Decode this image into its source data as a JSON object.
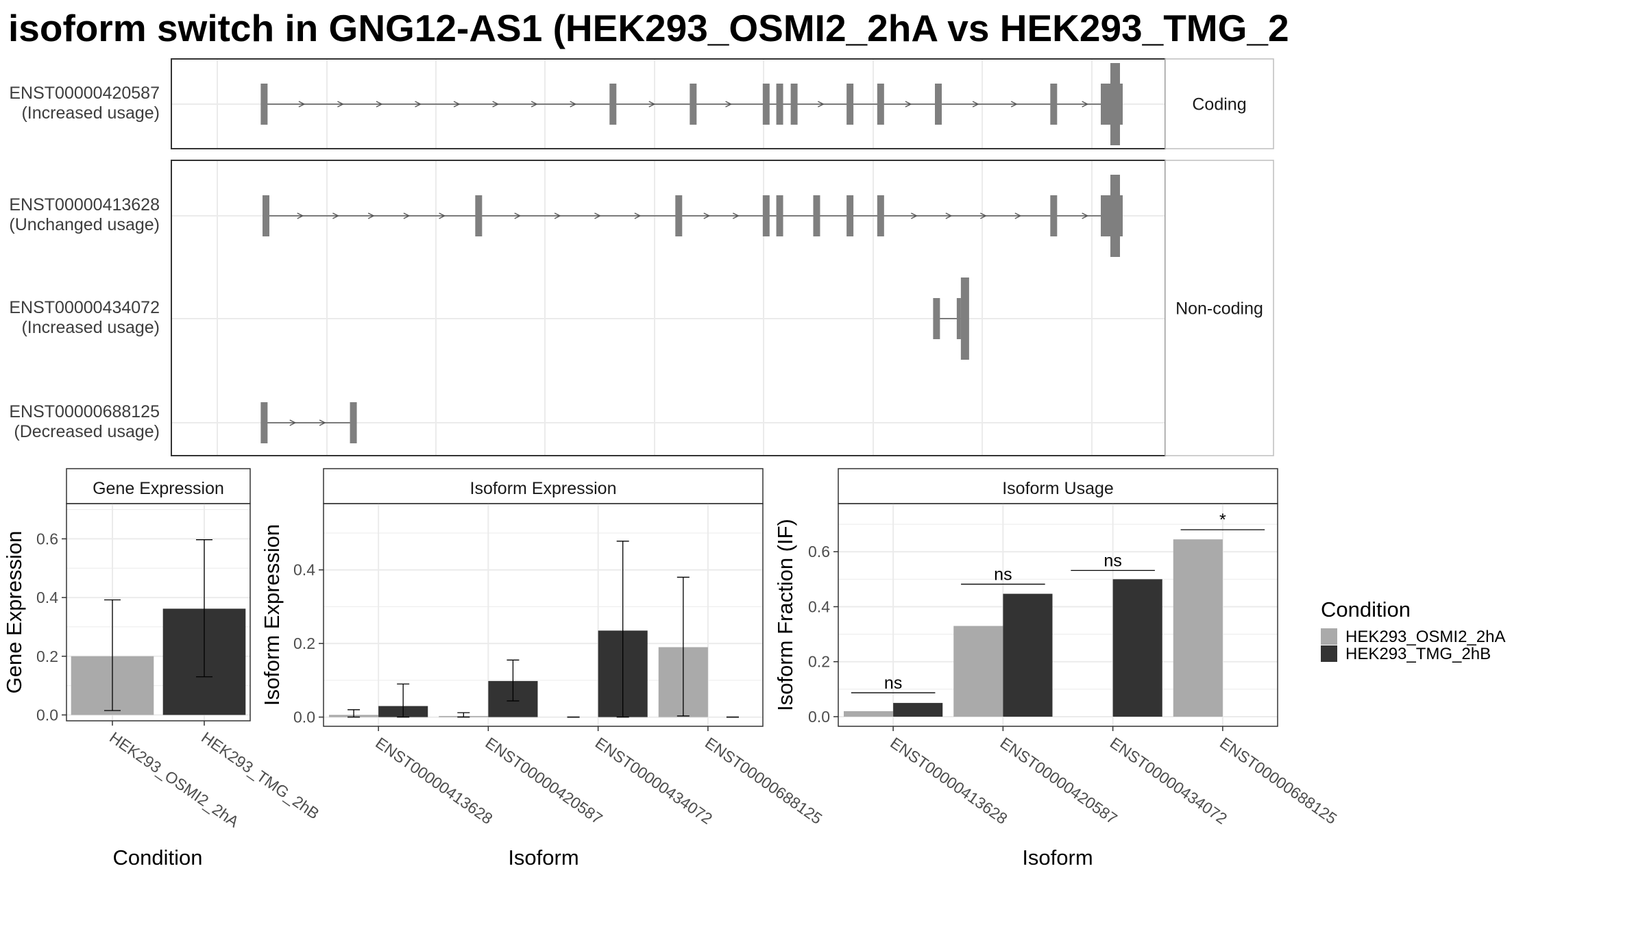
{
  "title": "isoform switch in GNG12-AS1 (HEK293_OSMI2_2hA vs HEK293_TMG_2",
  "colors": {
    "HEK293_OSMI2_2hA": "#aaaaaa",
    "HEK293_TMG_2hB": "#333333",
    "exon": "#7f7f7f",
    "grid": "#ebebeb",
    "panel_border": "#333333"
  },
  "transcript_panel": {
    "groups": [
      {
        "label": "Coding",
        "isoforms": [
          0
        ]
      },
      {
        "label": "Non-coding",
        "isoforms": [
          1,
          2,
          3
        ]
      }
    ],
    "isoforms": [
      {
        "id": "ENST00000420587",
        "usage": "(Increased usage)",
        "exons": [
          0.052,
          0.439,
          0.528,
          0.609,
          0.624,
          0.64,
          0.702,
          0.736,
          0.8,
          0.928,
          1.0
        ],
        "utr_tail": true
      },
      {
        "id": "ENST00000413628",
        "usage": "(Unchanged usage)",
        "exons": [
          0.054,
          0.29,
          0.512,
          0.609,
          0.624,
          0.665,
          0.702,
          0.736,
          0.928,
          1.0
        ],
        "utr_tail": true
      },
      {
        "id": "ENST00000434072",
        "usage": "(Increased usage)",
        "exons": [
          0.798,
          0.825
        ],
        "utr_tail": false
      },
      {
        "id": "ENST00000688125",
        "usage": "(Decreased usage)",
        "exons": [
          0.052,
          0.151
        ],
        "utr_tail": false
      }
    ]
  },
  "chart_data": [
    {
      "type": "bar",
      "title": "Gene Expression",
      "xlabel": "Condition",
      "ylabel": "Gene Expression",
      "ylim": [
        -0.02,
        0.72
      ],
      "yticks": [
        0.0,
        0.2,
        0.4,
        0.6
      ],
      "categories": [
        "HEK293_OSMI2_2hA",
        "HEK293_TMG_2hB"
      ],
      "values": [
        0.2,
        0.362
      ],
      "error_low": [
        0.015,
        0.13
      ],
      "error_high": [
        0.392,
        0.597
      ]
    },
    {
      "type": "bar",
      "title": "Isoform Expression",
      "xlabel": "Isoform",
      "ylabel": "Isoform Expression",
      "ylim": [
        -0.025,
        0.58
      ],
      "yticks": [
        0.0,
        0.2,
        0.4
      ],
      "categories": [
        "ENST00000413628",
        "ENST00000420587",
        "ENST00000434072",
        "ENST00000688125"
      ],
      "series": [
        {
          "name": "HEK293_OSMI2_2hA",
          "values": [
            0.006,
            0.003,
            0.0,
            0.19
          ],
          "error_low": [
            0.0,
            0.0,
            0.0,
            0.003
          ],
          "error_high": [
            0.02,
            0.012,
            0.0,
            0.38
          ]
        },
        {
          "name": "HEK293_TMG_2hB",
          "values": [
            0.03,
            0.098,
            0.235,
            0.0
          ],
          "error_low": [
            0.0,
            0.044,
            0.0,
            0.0
          ],
          "error_high": [
            0.09,
            0.155,
            0.478,
            0.0
          ]
        }
      ]
    },
    {
      "type": "bar",
      "title": "Isoform Usage",
      "xlabel": "Isoform",
      "ylabel": "Isoform Fraction (IF)",
      "ylim": [
        -0.035,
        0.775
      ],
      "yticks": [
        0.0,
        0.2,
        0.4,
        0.6
      ],
      "categories": [
        "ENST00000413628",
        "ENST00000420587",
        "ENST00000434072",
        "ENST00000688125"
      ],
      "series": [
        {
          "name": "HEK293_OSMI2_2hA",
          "values": [
            0.02,
            0.33,
            0.0,
            0.645
          ]
        },
        {
          "name": "HEK293_TMG_2hB",
          "values": [
            0.05,
            0.447,
            0.5,
            0.0
          ]
        }
      ],
      "significance": [
        {
          "label": "ns",
          "y": 0.087
        },
        {
          "label": "ns",
          "y": 0.482
        },
        {
          "label": "ns",
          "y": 0.532
        },
        {
          "label": "*",
          "y": 0.68
        }
      ]
    }
  ],
  "legend": {
    "title": "Condition",
    "entries": [
      "HEK293_OSMI2_2hA",
      "HEK293_TMG_2hB"
    ]
  }
}
